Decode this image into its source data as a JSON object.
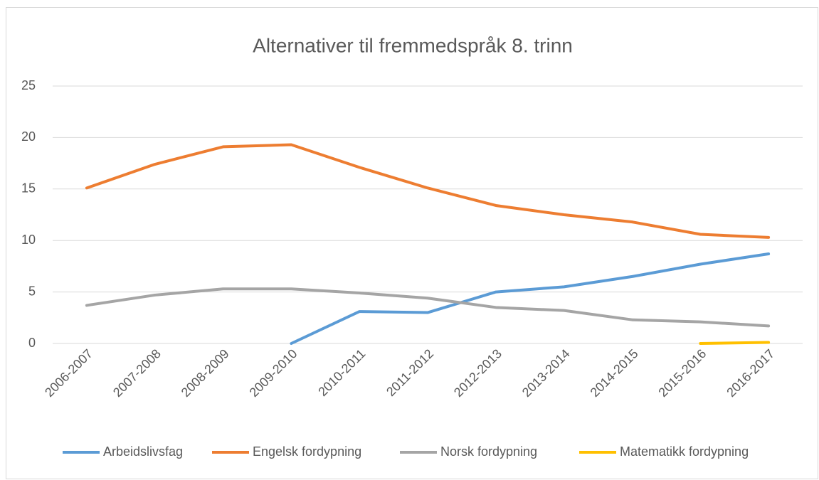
{
  "chart_data": {
    "type": "line",
    "title": "Alternativer til fremmedspråk 8. trinn",
    "categories": [
      "2006-2007",
      "2007-2008",
      "2008-2009",
      "2009-2010",
      "2010-2011",
      "2011-2012",
      "2012-2013",
      "2013-2014",
      "2014-2015",
      "2015-2016",
      "2016-2017"
    ],
    "series": [
      {
        "name": "Arbeidslivsfag",
        "color": "#5b9bd5",
        "values": [
          null,
          null,
          null,
          0,
          3.1,
          3.0,
          5.0,
          5.5,
          6.5,
          7.7,
          8.7
        ]
      },
      {
        "name": "Engelsk fordypning",
        "color": "#ed7d31",
        "values": [
          15.1,
          17.4,
          19.1,
          19.3,
          17.1,
          15.1,
          13.4,
          12.5,
          11.8,
          10.6,
          10.3
        ]
      },
      {
        "name": "Norsk fordypning",
        "color": "#a5a5a5",
        "values": [
          3.7,
          4.7,
          5.3,
          5.3,
          4.9,
          4.4,
          3.5,
          3.2,
          2.3,
          2.1,
          1.7
        ]
      },
      {
        "name": "Matematikk fordypning",
        "color": "#ffc000",
        "values": [
          null,
          null,
          null,
          null,
          null,
          null,
          null,
          null,
          null,
          0,
          0.1
        ]
      }
    ],
    "ylim": [
      0,
      25
    ],
    "yticks": [
      0,
      5,
      10,
      15,
      20,
      25
    ],
    "grid": true,
    "legend": "bottom"
  }
}
